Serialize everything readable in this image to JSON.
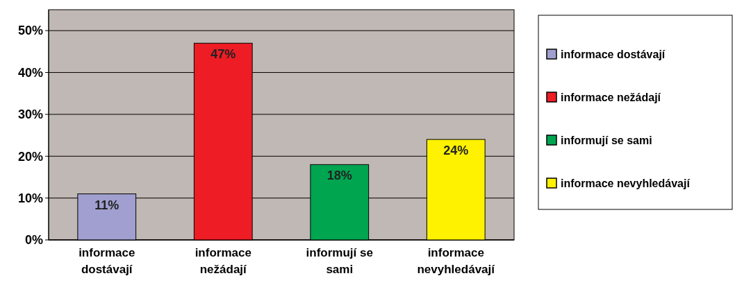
{
  "chart_data": {
    "type": "bar",
    "stacked": true,
    "categories": [
      "informace dostávají",
      "informace nežádají",
      "informují se sami",
      "informace nevyhledávají"
    ],
    "series": [
      {
        "name": "informace dostávají",
        "color": "#a09fd0",
        "values": [
          11,
          null,
          null,
          null
        ]
      },
      {
        "name": "informace nežádají",
        "color": "#ee1c24",
        "values": [
          null,
          47,
          null,
          null
        ]
      },
      {
        "name": "informují se sami",
        "color": "#00a550",
        "values": [
          null,
          null,
          18,
          null
        ]
      },
      {
        "name": "informace nevyhledávají",
        "color": "#fff200",
        "values": [
          null,
          null,
          null,
          24
        ]
      }
    ],
    "value_labels": [
      "11%",
      "47%",
      "18%",
      "24%"
    ],
    "ylim": [
      0,
      55
    ],
    "yticks": [
      {
        "value": 0,
        "label": "0%"
      },
      {
        "value": 10,
        "label": "10%"
      },
      {
        "value": 20,
        "label": "20%"
      },
      {
        "value": 30,
        "label": "30%"
      },
      {
        "value": 40,
        "label": "40%"
      },
      {
        "value": 50,
        "label": "50%"
      }
    ],
    "grid": "y",
    "legend": "right"
  }
}
